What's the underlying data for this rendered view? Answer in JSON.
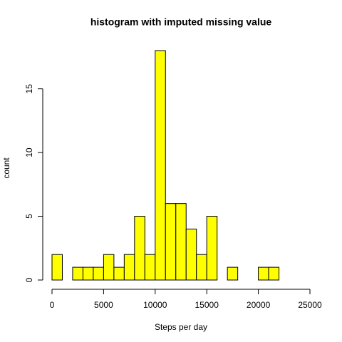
{
  "chart_data": {
    "type": "histogram",
    "title": "histogram with imputed missing value",
    "x_label": "Steps per day",
    "y_label": "count",
    "bins": [
      0,
      1000,
      2000,
      3000,
      4000,
      5000,
      6000,
      7000,
      8000,
      9000,
      10000,
      11000,
      12000,
      13000,
      14000,
      15000,
      16000,
      17000,
      18000,
      19000,
      20000,
      21000,
      22000,
      23000,
      24000,
      25000
    ],
    "values": [
      2,
      0,
      1,
      1,
      1,
      2,
      1,
      2,
      5,
      2,
      18,
      6,
      6,
      4,
      2,
      5,
      0,
      1,
      0,
      0,
      1,
      1,
      0,
      0,
      0
    ],
    "color": "#ffff00",
    "xlim": [
      0,
      25000
    ],
    "xticks": [
      0,
      5000,
      10000,
      15000,
      20000,
      25000
    ],
    "ylim": [
      0,
      18
    ],
    "yticks": [
      0,
      5,
      10,
      15
    ]
  }
}
